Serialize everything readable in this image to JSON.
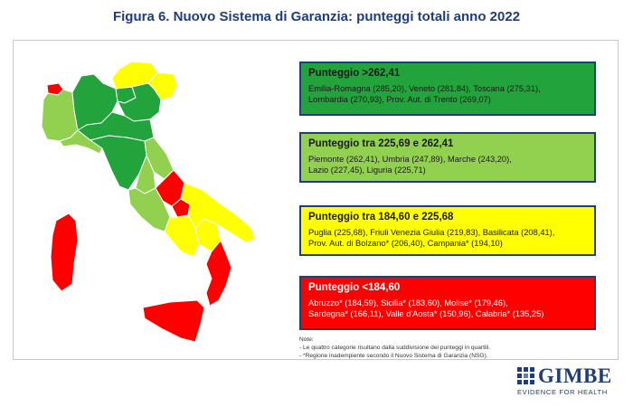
{
  "title": "Figura 6. Nuovo Sistema di Garanzia: punteggi totali anno 2022",
  "colors": {
    "green": "#22a33c",
    "light_green": "#92d050",
    "yellow": "#ffff00",
    "red": "#ff0000",
    "navy": "#1f3d7a"
  },
  "categories": [
    {
      "heading": "Punteggio >262,41",
      "line1": "Emilia-Romagna (285,20), Veneto (281,84), Toscana (275,31),",
      "line2": "Lombardia (270,93), Prov. Aut. di Trento (269,07)"
    },
    {
      "heading": "Punteggio tra 225,69 e 262,41",
      "line1": "Piemonte (262,41), Umbria (247,89), Marche (243,20),",
      "line2": "Lazio (227,45), Liguria (225,71)"
    },
    {
      "heading": "Punteggio tra 184,60 e 225,68",
      "line1": "Puglia (225,68), Friuli Venezia Giulia (219,83), Basilicata (208,41),",
      "line2": "Prov. Aut. di Bolzano* (206,40), Campania* (194,10)"
    },
    {
      "heading": "Punteggio <184,60",
      "line1": "Abruzzo* (184,59), Sicilia* (183,60), Molise* (179,46),",
      "line2": "Sardegna* (166,11), Valle d'Aosta* (150,96), Calabria* (135,25)"
    }
  ],
  "notes": {
    "label": "Note:",
    "line1": "- Le quattro categorie risultano dalla suddivisione dei punteggi in quartili.",
    "line2": "- *Regione inadempiente secondo il Nuovo Sistema di Garanzia (NSG)."
  },
  "logo": {
    "name": "GIMBE",
    "tagline": "EVIDENCE FOR HEALTH"
  }
}
